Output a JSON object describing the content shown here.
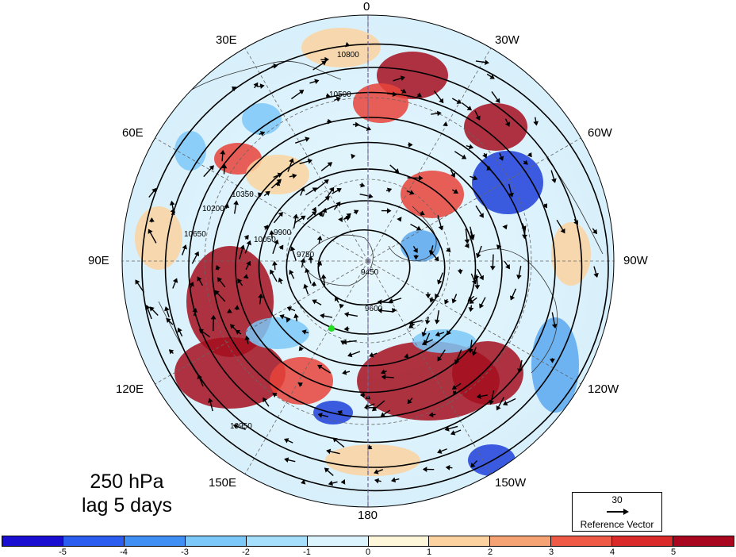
{
  "map": {
    "projection": "north-polar-stereographic",
    "center_marker_color": "#22dd22",
    "longitude_labels": [
      "0",
      "30W",
      "60W",
      "90W",
      "120W",
      "150W",
      "180",
      "150E",
      "120E",
      "90E",
      "60E",
      "30E"
    ],
    "contour_labels": [
      "10800",
      "10500",
      "10350",
      "10200",
      "10050",
      "9900",
      "9750",
      "9600",
      "9450",
      "10650",
      "10950"
    ],
    "colors": {
      "positive_strong": "#a50f1f",
      "positive": "#e8433a",
      "negative_strong": "#1f3fd9",
      "negative": "#5aa8ee",
      "neutral": "#fffbe6"
    }
  },
  "title": {
    "level": "250 hPa",
    "lag": "lag 5 days"
  },
  "reference_vector": {
    "value": "30",
    "label": "Reference Vector"
  },
  "colorbar": {
    "colors": [
      "#1a0fd1",
      "#2a5df0",
      "#3f8ff5",
      "#7cc8f8",
      "#a6dffb",
      "#dcf4fd",
      "#fff7d9",
      "#fcd3a0",
      "#f5a374",
      "#ee5a45",
      "#db2a2a",
      "#a8071f"
    ],
    "tick_labels": [
      "-5",
      "-4",
      "-3",
      "-2",
      "-1",
      "0",
      "1",
      "2",
      "3",
      "4",
      "5"
    ]
  }
}
